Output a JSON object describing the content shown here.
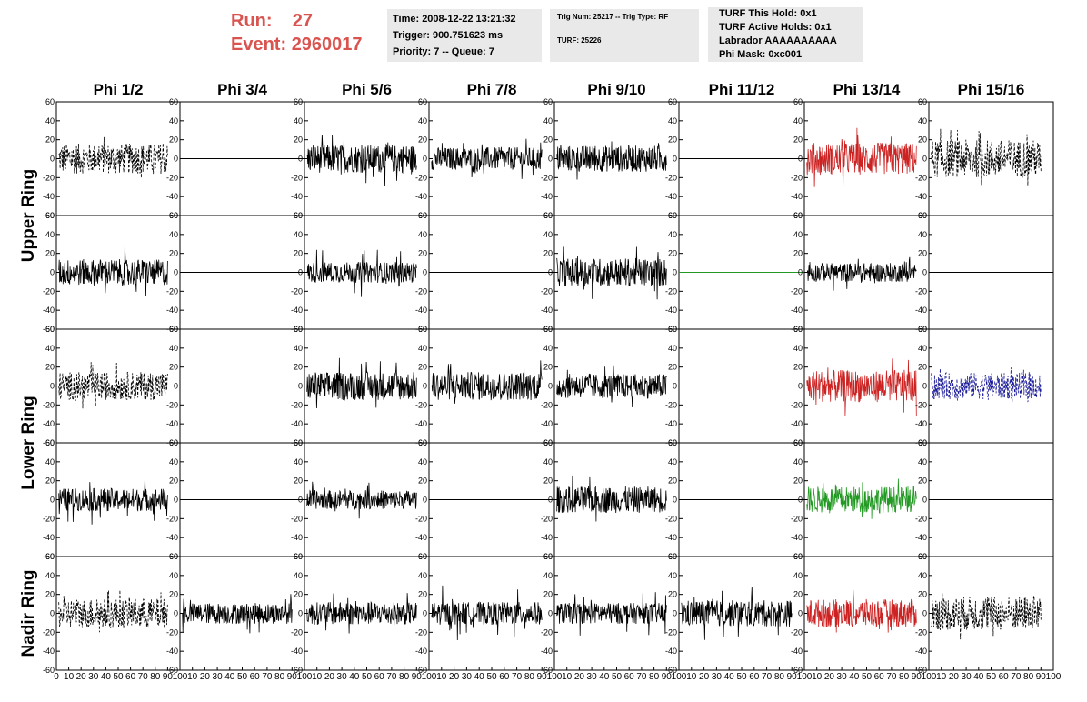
{
  "header": {
    "run_label": "Run:",
    "run_value": "27",
    "event_label": "Event:",
    "event_value": "2960017",
    "time": "Time: 2008-12-22 13:21:32",
    "trigger": "Trigger: 900.751623 ms",
    "priority": "Priority: 7 -- Queue: 7",
    "trig_num": "Trig Num: 25217 -- Trig Type: RF",
    "turf": "TURF: 25226",
    "turf_this_hold": "TURF This Hold: 0x1",
    "turf_active_holds": "TURF Active Holds: 0x1",
    "labrador": "Labrador AAAAAAAAAA",
    "phi_mask": "Phi Mask: 0xc001"
  },
  "chart_data": {
    "type": "line",
    "columns": [
      "Phi 1/2",
      "Phi 3/4",
      "Phi 5/6",
      "Phi 7/8",
      "Phi 9/10",
      "Phi 11/12",
      "Phi 13/14",
      "Phi 15/16"
    ],
    "rings": [
      "Upper Ring",
      "Lower Ring",
      "Nadir Ring"
    ],
    "ylim": [
      -60,
      60
    ],
    "y_ticks": [
      -60,
      -40,
      -20,
      0,
      20,
      40,
      60
    ],
    "xlim": [
      0,
      100
    ],
    "x_ticks": [
      0,
      10,
      20,
      30,
      40,
      50,
      60,
      70,
      80,
      90,
      100
    ],
    "colors": {
      "black": "#000000",
      "red": "#cc2222",
      "green": "#229922",
      "blue": "#1a1a99"
    },
    "panels": [
      [
        {
          "style": "dashed",
          "color": "black",
          "amp": 16,
          "spikes": 1.5
        },
        {
          "style": "flat",
          "color": "black",
          "amp": 0
        },
        {
          "style": "solid",
          "color": "black",
          "amp": 15,
          "spikes": 2
        },
        {
          "style": "solid",
          "color": "black",
          "amp": 12,
          "spikes": 1.8
        },
        {
          "style": "solid",
          "color": "black",
          "amp": 14,
          "spikes": 2
        },
        {
          "style": "flat",
          "color": "black",
          "amp": 0
        },
        {
          "style": "solid",
          "color": "red",
          "amp": 17,
          "spikes": 2
        },
        {
          "style": "dashed",
          "color": "black",
          "amp": 20,
          "spikes": 1.6
        }
      ],
      [
        {
          "style": "solid",
          "color": "black",
          "amp": 14,
          "spikes": 2
        },
        {
          "style": "flat",
          "color": "black",
          "amp": 0
        },
        {
          "style": "solid",
          "color": "black",
          "amp": 11,
          "spikes": 2.5
        },
        {
          "style": "flat",
          "color": "black",
          "amp": 0
        },
        {
          "style": "solid",
          "color": "black",
          "amp": 15,
          "spikes": 2
        },
        {
          "style": "flat",
          "color": "green",
          "amp": 0
        },
        {
          "style": "solid",
          "color": "black",
          "amp": 10,
          "spikes": 2
        },
        {
          "style": "flat",
          "color": "black",
          "amp": 0
        }
      ],
      [
        {
          "style": "dashed",
          "color": "black",
          "amp": 15,
          "spikes": 1.7
        },
        {
          "style": "flat",
          "color": "black",
          "amp": 0
        },
        {
          "style": "solid",
          "color": "black",
          "amp": 15,
          "spikes": 2
        },
        {
          "style": "solid",
          "color": "black",
          "amp": 15,
          "spikes": 2
        },
        {
          "style": "solid",
          "color": "black",
          "amp": 13,
          "spikes": 1.8
        },
        {
          "style": "flat",
          "color": "blue",
          "amp": 0
        },
        {
          "style": "solid",
          "color": "red",
          "amp": 17,
          "spikes": 2
        },
        {
          "style": "dashed",
          "color": "blue",
          "amp": 14,
          "spikes": 1.6
        }
      ],
      [
        {
          "style": "solid",
          "color": "black",
          "amp": 12,
          "spikes": 2.5
        },
        {
          "style": "flat",
          "color": "black",
          "amp": 0
        },
        {
          "style": "solid",
          "color": "black",
          "amp": 10,
          "spikes": 2
        },
        {
          "style": "flat",
          "color": "black",
          "amp": 0
        },
        {
          "style": "solid",
          "color": "black",
          "amp": 14,
          "spikes": 2
        },
        {
          "style": "flat",
          "color": "black",
          "amp": 0
        },
        {
          "style": "solid",
          "color": "green",
          "amp": 14,
          "spikes": 1.6
        },
        {
          "style": "flat",
          "color": "black",
          "amp": 0
        }
      ],
      [
        {
          "style": "dashed",
          "color": "black",
          "amp": 16,
          "spikes": 1.6
        },
        {
          "style": "solid",
          "color": "black",
          "amp": 11,
          "spikes": 2
        },
        {
          "style": "solid",
          "color": "black",
          "amp": 12,
          "spikes": 2
        },
        {
          "style": "solid",
          "color": "black",
          "amp": 12,
          "spikes": 2.5
        },
        {
          "style": "solid",
          "color": "black",
          "amp": 11,
          "spikes": 2.2
        },
        {
          "style": "solid",
          "color": "black",
          "amp": 14,
          "spikes": 2
        },
        {
          "style": "solid",
          "color": "red",
          "amp": 15,
          "spikes": 2
        },
        {
          "style": "dashed",
          "color": "black",
          "amp": 18,
          "spikes": 1.7
        }
      ]
    ]
  }
}
